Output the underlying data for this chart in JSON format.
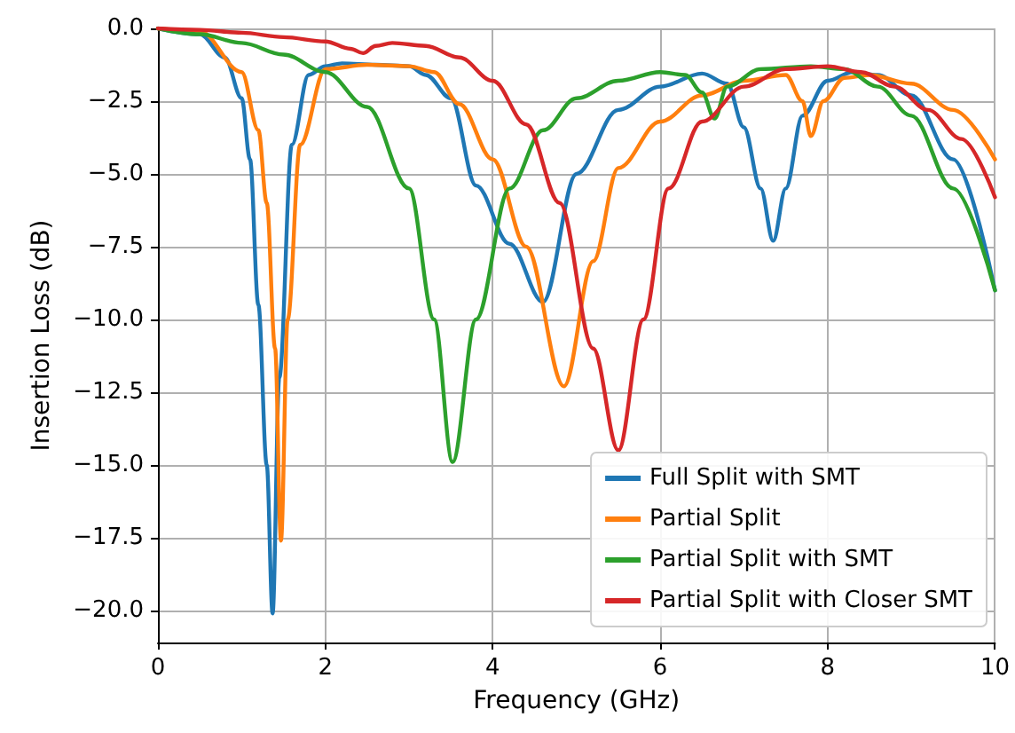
{
  "chart_data": {
    "type": "line",
    "xlabel": "Frequency (GHz)",
    "ylabel": "Insertion Loss (dB)",
    "xlim": [
      0,
      10
    ],
    "xticks": [
      0,
      2,
      4,
      6,
      8,
      10
    ],
    "ylim": [
      -21.1,
      0
    ],
    "yticks": [
      {
        "value": 0,
        "label": "0.0"
      },
      {
        "value": -2.5,
        "label": "−2.5"
      },
      {
        "value": -5,
        "label": "−5.0"
      },
      {
        "value": -7.5,
        "label": "−7.5"
      },
      {
        "value": -10,
        "label": "−10.0"
      },
      {
        "value": -12.5,
        "label": "−12.5"
      },
      {
        "value": -15,
        "label": "−15.0"
      },
      {
        "value": -17.5,
        "label": "−17.5"
      },
      {
        "value": -20,
        "label": "−20.0"
      }
    ],
    "grid": true,
    "legend": "bottom right",
    "line_style": "solid",
    "marker": "none",
    "series": [
      {
        "name": "Full Split with SMT",
        "color": "#1f77b4",
        "x": [
          0,
          0.5,
          0.8,
          1.0,
          1.1,
          1.2,
          1.3,
          1.37,
          1.45,
          1.6,
          1.8,
          2.0,
          2.2,
          2.6,
          3.0,
          3.2,
          3.5,
          3.8,
          4.2,
          4.6,
          5.0,
          5.5,
          6.0,
          6.5,
          6.8,
          7.0,
          7.2,
          7.35,
          7.5,
          7.7,
          8.0,
          8.3,
          8.6,
          9.0,
          9.5,
          10
        ],
        "values": [
          0,
          -0.2,
          -1.0,
          -2.4,
          -4.5,
          -9.5,
          -15,
          -20.1,
          -12,
          -4,
          -1.6,
          -1.3,
          -1.2,
          -1.25,
          -1.3,
          -1.6,
          -2.4,
          -5.4,
          -7.4,
          -9.4,
          -5,
          -2.8,
          -2.0,
          -1.55,
          -1.9,
          -3.4,
          -5.5,
          -7.3,
          -5.5,
          -3.0,
          -1.8,
          -1.5,
          -1.6,
          -2.3,
          -4.5,
          -9.0
        ]
      },
      {
        "name": "Partial Split",
        "color": "#ff7f0e",
        "x": [
          0,
          0.5,
          1.0,
          1.2,
          1.3,
          1.4,
          1.47,
          1.55,
          1.7,
          2.0,
          2.5,
          3.0,
          3.3,
          3.6,
          4.0,
          4.4,
          4.85,
          5.2,
          5.5,
          6.0,
          6.5,
          7.0,
          7.5,
          7.7,
          7.8,
          7.95,
          8.2,
          8.5,
          9.0,
          9.5,
          10
        ],
        "values": [
          0,
          -0.1,
          -1.5,
          -3.5,
          -6,
          -11,
          -17.6,
          -10,
          -4,
          -1.4,
          -1.25,
          -1.3,
          -1.5,
          -2.6,
          -4.5,
          -7.5,
          -12.3,
          -8,
          -4.8,
          -3.2,
          -2.3,
          -1.8,
          -1.6,
          -2.5,
          -3.7,
          -2.5,
          -1.7,
          -1.6,
          -1.9,
          -2.8,
          -4.5
        ]
      },
      {
        "name": "Partial Split with SMT",
        "color": "#2ca02c",
        "x": [
          0,
          0.5,
          1.0,
          1.5,
          2.0,
          2.5,
          3.0,
          3.3,
          3.52,
          3.8,
          4.2,
          4.6,
          5.0,
          5.5,
          6.0,
          6.3,
          6.5,
          6.65,
          6.8,
          7.2,
          7.8,
          8.2,
          8.6,
          9.0,
          9.5,
          10
        ],
        "values": [
          0,
          -0.2,
          -0.5,
          -0.9,
          -1.5,
          -2.7,
          -5.5,
          -10,
          -14.9,
          -10,
          -5.5,
          -3.5,
          -2.4,
          -1.8,
          -1.5,
          -1.6,
          -2.2,
          -3.1,
          -2.0,
          -1.4,
          -1.3,
          -1.4,
          -2.0,
          -3.0,
          -5.5,
          -9.0
        ]
      },
      {
        "name": "Partial Split with Closer SMT",
        "color": "#d62728",
        "x": [
          0,
          0.5,
          1.0,
          1.5,
          2.0,
          2.3,
          2.45,
          2.6,
          2.8,
          3.2,
          3.6,
          4.0,
          4.4,
          4.8,
          5.2,
          5.5,
          5.8,
          6.1,
          6.5,
          7.0,
          7.5,
          8.0,
          8.4,
          8.8,
          9.2,
          9.6,
          10
        ],
        "values": [
          0,
          -0.05,
          -0.15,
          -0.3,
          -0.45,
          -0.7,
          -0.85,
          -0.6,
          -0.5,
          -0.6,
          -1.0,
          -1.8,
          -3.3,
          -6,
          -11,
          -14.5,
          -10,
          -5.5,
          -3.2,
          -2.0,
          -1.4,
          -1.3,
          -1.5,
          -2.0,
          -2.8,
          -3.8,
          -5.8
        ]
      }
    ]
  }
}
